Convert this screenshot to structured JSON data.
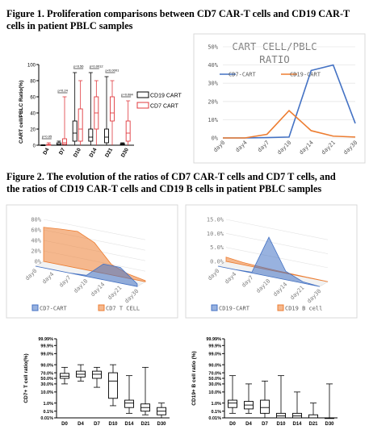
{
  "figure1": {
    "caption_l1": "Figure 1. Proliferation comparisons between CD7 CAR-T cells and CD19 CAR-T",
    "caption_l2": "cells in patient PBLC samples"
  },
  "figure2": {
    "caption_l1": "Figure 2.    The evolution of the ratios of CD7 CAR-T cells and CD7 T cells, and",
    "caption_l2": "the ratios of CD19 CAR-T cells and CD19 B cells in patient PBLC samples"
  },
  "colors": {
    "cd19": "#4472c4",
    "cd7": "#ed7d31",
    "cd7_box": "#e0393e",
    "black": "#000000"
  },
  "chart_data": [
    {
      "id": "boxplot_cart",
      "type": "box",
      "ylabel": "CART cell/PBLC Ratio(%)",
      "ylim": [
        0,
        100
      ],
      "yticks": [
        "0",
        "20",
        "40",
        "60",
        "80",
        "100"
      ],
      "categories": [
        "D4",
        "D7",
        "D10",
        "D14",
        "D21",
        "D30"
      ],
      "series": [
        {
          "name": "CD19 CART",
          "color": "#000000",
          "boxes": [
            [
              0,
              0,
              0.1,
              0.3,
              0.5
            ],
            [
              0,
              0.5,
              1,
              3,
              5
            ],
            [
              0,
              5,
              15,
              30,
              90
            ],
            [
              0,
              5,
              10,
              20,
              90
            ],
            [
              0,
              3,
              10,
              20,
              85
            ],
            [
              0,
              0.5,
              1,
              2,
              3
            ]
          ]
        },
        {
          "name": "CD7 CART",
          "color": "#e0393e",
          "boxes": [
            [
              0,
              0,
              0.5,
              1,
              3
            ],
            [
              0,
              1,
              3,
              8,
              60
            ],
            [
              0,
              5,
              20,
              45,
              80
            ],
            [
              0,
              20,
              40,
              60,
              80
            ],
            [
              0,
              30,
              40,
              60,
              80
            ],
            [
              0,
              5,
              15,
              30,
              55
            ]
          ]
        }
      ],
      "pvalues": [
        "p=0.05",
        "p=0.24",
        "p=0.56",
        "p=0.0012",
        "p<0.0001",
        "p=0.084"
      ]
    },
    {
      "id": "line_ratio",
      "type": "line",
      "title_l1": "CART CELL/PBLC",
      "title_l2": "RATIO",
      "categories": [
        "day0",
        "day4",
        "day7",
        "day10",
        "day14",
        "day21",
        "day30"
      ],
      "ylim": [
        0,
        50
      ],
      "yticks": [
        "0%",
        "10%",
        "20%",
        "30%",
        "40%",
        "50%"
      ],
      "series": [
        {
          "name": "CD7-CART",
          "color": "#4472c4",
          "values": [
            0,
            0,
            0.2,
            0.5,
            37,
            40,
            8
          ]
        },
        {
          "name": "CD19-CART",
          "color": "#ed7d31",
          "values": [
            0,
            0,
            2,
            15,
            4,
            1,
            0.5
          ]
        }
      ]
    },
    {
      "id": "area3d_cd7",
      "type": "area",
      "categories": [
        "day0",
        "day4",
        "day7",
        "day10",
        "day14",
        "day21",
        "day30"
      ],
      "yticks": [
        "0%",
        "20%",
        "40%",
        "60%",
        "80%"
      ],
      "ylim": [
        0,
        80
      ],
      "series": [
        {
          "name": "CD7-CART",
          "color": "#4472c4",
          "values": [
            0,
            0,
            0,
            2,
            30,
            30,
            5
          ]
        },
        {
          "name": "CD7 T CELL",
          "color": "#ed7d31",
          "values": [
            65,
            68,
            70,
            55,
            20,
            8,
            2
          ]
        }
      ]
    },
    {
      "id": "area3d_cd19",
      "type": "area",
      "categories": [
        "day0",
        "day4",
        "day7",
        "day10",
        "day14",
        "day21",
        "day30"
      ],
      "yticks": [
        "0.0%",
        "5.0%",
        "10.0%",
        "15.0%"
      ],
      "ylim": [
        0,
        15
      ],
      "series": [
        {
          "name": "CD19-CART",
          "color": "#4472c4",
          "values": [
            0,
            0,
            0.3,
            14,
            3,
            0.5,
            0
          ]
        },
        {
          "name": "CD19 B cell",
          "color": "#ed7d31",
          "values": [
            1.5,
            0.8,
            0.5,
            0.3,
            0.2,
            0.1,
            0
          ]
        }
      ]
    },
    {
      "id": "box_cd7t",
      "type": "box",
      "ylabel": "CD7+ T cell ratio(%)",
      "yticks": [
        "99.99%",
        "99.9%",
        "99.0%",
        "90.0%",
        "70.0%",
        "50.0%",
        "30.0%",
        "10.0%",
        "1.0%",
        "0.1%",
        "0.01%"
      ],
      "categories": [
        "D0",
        "D4",
        "D7",
        "D10",
        "D14",
        "D21",
        "D30"
      ],
      "boxes_pct": [
        [
          30,
          50,
          58,
          68,
          85
        ],
        [
          40,
          55,
          65,
          75,
          90
        ],
        [
          20,
          50,
          65,
          75,
          85
        ],
        [
          0.5,
          3,
          40,
          70,
          90
        ],
        [
          0.05,
          0.3,
          1,
          2,
          60
        ],
        [
          0.03,
          0.1,
          0.3,
          0.8,
          85
        ],
        [
          0.01,
          0.03,
          0.1,
          0.3,
          1
        ]
      ]
    },
    {
      "id": "box_cd19b",
      "type": "box",
      "ylabel": "CD19+ B cell ratio (%)",
      "yticks": [
        "99.99%",
        "99.9%",
        "99.0%",
        "90.0%",
        "70.0%",
        "50.0%",
        "30.0%",
        "10.0%",
        "1.0%",
        "0.1%",
        "0.01%"
      ],
      "categories": [
        "D0",
        "D4",
        "D7",
        "D10",
        "D14",
        "D21",
        "D30"
      ],
      "boxes_pct": [
        [
          0.05,
          0.3,
          1,
          2,
          60
        ],
        [
          0.05,
          0.2,
          0.6,
          1.5,
          30
        ],
        [
          0.01,
          0.05,
          0.3,
          2,
          40
        ],
        [
          0.01,
          0.01,
          0.02,
          0.05,
          60
        ],
        [
          0.01,
          0.01,
          0.02,
          0.05,
          10
        ],
        [
          0.01,
          0.01,
          0.01,
          0.03,
          1
        ],
        [
          0.01,
          0.01,
          0.01,
          0.01,
          30
        ]
      ]
    }
  ]
}
